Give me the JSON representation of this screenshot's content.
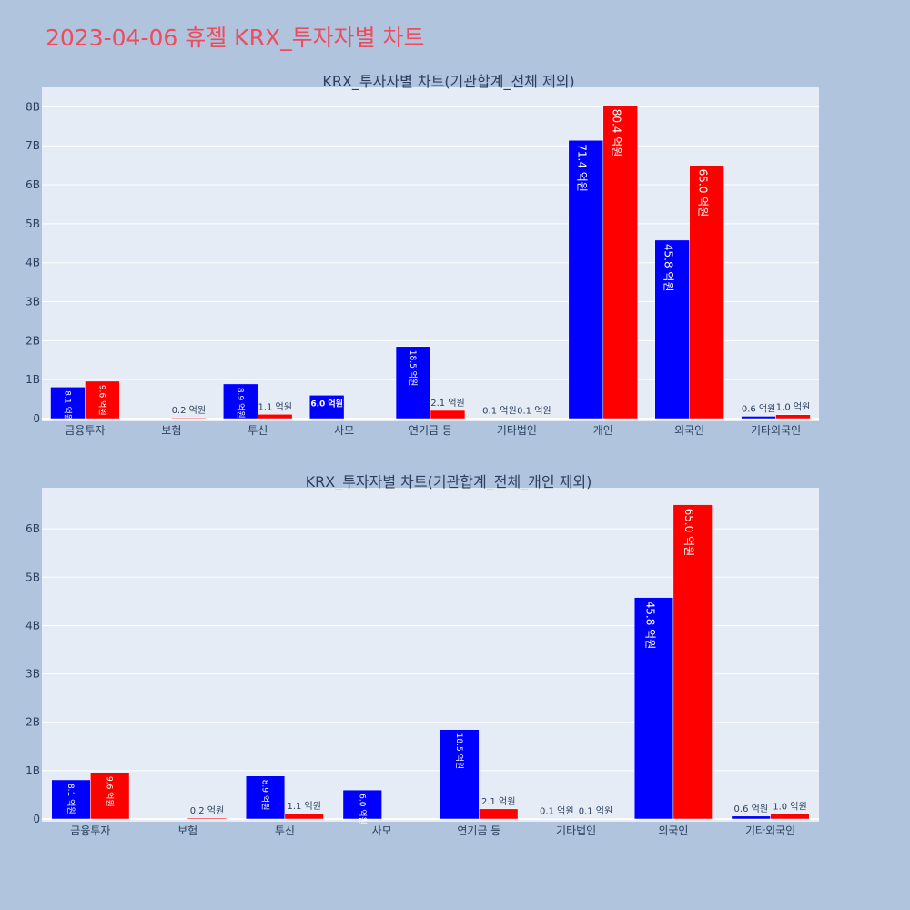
{
  "page": {
    "title": "2023-04-06 휴젤 KRX_투자자별 차트"
  },
  "colors": {
    "series_a": "#0000ff",
    "series_b": "#ff0000",
    "plot_bg": "#e5ecf6",
    "page_bg": "#b0c4de",
    "grid": "#ffffff",
    "text": "#2a3f5f"
  },
  "chart_data": [
    {
      "type": "bar",
      "title": "KRX_투자자별 차트(기관합계_전체 제외)",
      "categories": [
        "금융투자",
        "보험",
        "투신",
        "사모",
        "연기금 등",
        "기타법인",
        "개인",
        "외국인",
        "기타외국인"
      ],
      "yticks": [
        "0",
        "1B",
        "2B",
        "3B",
        "4B",
        "5B",
        "6B",
        "7B",
        "8B"
      ],
      "ylim": [
        0,
        8.5
      ],
      "series": [
        {
          "values": [
            0.81,
            0,
            0.89,
            0.6,
            1.85,
            0.01,
            7.14,
            4.58,
            0.06
          ],
          "labels": [
            "8.1 억원",
            "",
            "8.9 억원",
            "6.0 억원",
            "18.5 억원",
            "0.1 억원",
            "71.4 억원",
            "45.8 억원",
            "0.6 억원"
          ]
        },
        {
          "values": [
            0.96,
            0.02,
            0.11,
            0,
            0.21,
            0.01,
            8.04,
            6.5,
            0.1
          ],
          "labels": [
            "9.6 억원",
            "0.2 억원",
            "1.1 억원",
            "",
            "2.1 억원",
            "0.1 억원",
            "80.4 억원",
            "65.0 억원",
            "1.0 억원"
          ]
        }
      ]
    },
    {
      "type": "bar",
      "title": "KRX_투자자별 차트(기관합계_전체_개인 제외)",
      "categories": [
        "금융투자",
        "보험",
        "투신",
        "사모",
        "연기금 등",
        "기타법인",
        "외국인",
        "기타외국인"
      ],
      "yticks": [
        "0",
        "1B",
        "2B",
        "3B",
        "4B",
        "5B",
        "6B"
      ],
      "ylim": [
        0,
        6.85
      ],
      "series": [
        {
          "values": [
            0.81,
            0,
            0.89,
            0.6,
            1.85,
            0.01,
            4.58,
            0.06
          ],
          "labels": [
            "8.1 억원",
            "",
            "8.9 억원",
            "6.0 억원",
            "18.5 억원",
            "0.1 억원",
            "45.8 억원",
            "0.6 억원"
          ]
        },
        {
          "values": [
            0.96,
            0.02,
            0.11,
            0,
            0.21,
            0.01,
            6.5,
            0.1
          ],
          "labels": [
            "9.6 억원",
            "0.2 억원",
            "1.1 억원",
            "",
            "2.1 억원",
            "0.1 억원",
            "65.0 억원",
            "1.0 억원"
          ]
        }
      ]
    }
  ]
}
